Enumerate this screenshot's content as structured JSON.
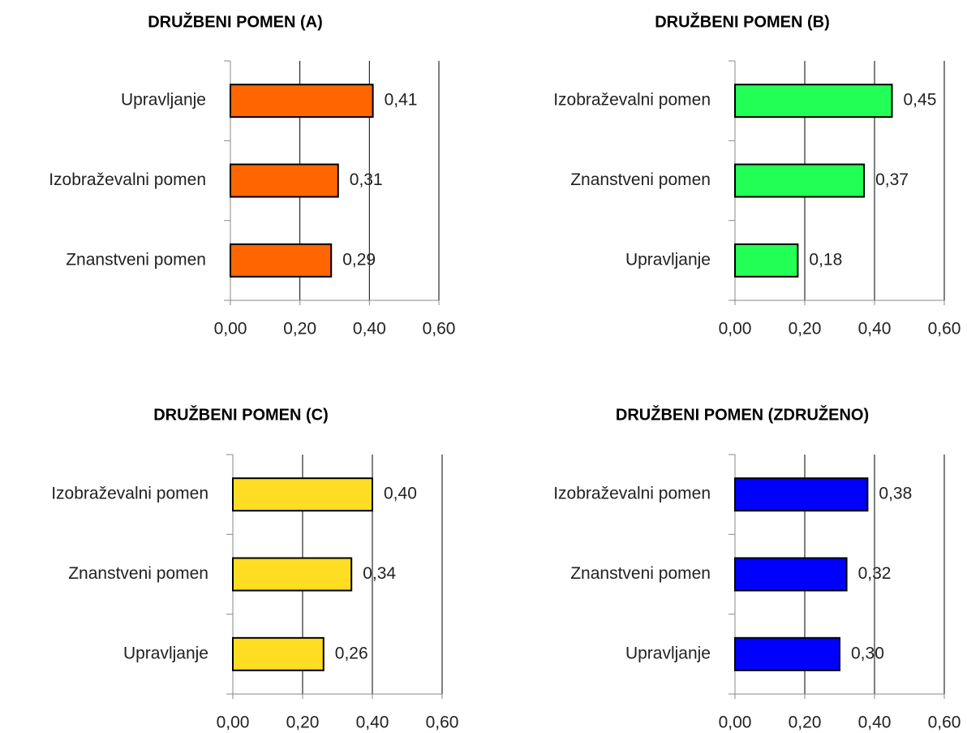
{
  "chart_data": [
    {
      "type": "hbar",
      "title": "DRUŽBENI POMEN (A)",
      "categories": [
        "Upravljanje",
        "Izobraževalni pomen",
        "Znanstveni pomen"
      ],
      "values": [
        0.41,
        0.31,
        0.29
      ],
      "value_labels": [
        "0,41",
        "0,31",
        "0,29"
      ],
      "color": "#ff6600",
      "xlim": [
        0,
        0.6
      ],
      "xticks": [
        {
          "value": 0,
          "label": "0,00"
        },
        {
          "value": 0.2,
          "label": "0,20"
        },
        {
          "value": 0.4,
          "label": "0,40"
        },
        {
          "value": 0.6,
          "label": "0,60"
        }
      ],
      "grid": true
    },
    {
      "type": "hbar",
      "title": "DRUŽBENI POMEN (B)",
      "categories": [
        "Izobraževalni pomen",
        "Znanstveni pomen",
        "Upravljanje"
      ],
      "values": [
        0.45,
        0.37,
        0.18
      ],
      "value_labels": [
        "0,45",
        "0,37",
        "0,18"
      ],
      "color": "#22ff55",
      "xlim": [
        0,
        0.6
      ],
      "xticks": [
        {
          "value": 0,
          "label": "0,00"
        },
        {
          "value": 0.2,
          "label": "0,20"
        },
        {
          "value": 0.4,
          "label": "0,40"
        },
        {
          "value": 0.6,
          "label": "0,60"
        }
      ],
      "grid": true
    },
    {
      "type": "hbar",
      "title": "DRUŽBENI POMEN (C)",
      "categories": [
        "Izobraževalni pomen",
        "Znanstveni pomen",
        "Upravljanje"
      ],
      "values": [
        0.4,
        0.34,
        0.26
      ],
      "value_labels": [
        "0,40",
        "0,34",
        "0,26"
      ],
      "color": "#ffdd22",
      "xlim": [
        0,
        0.6
      ],
      "xticks": [
        {
          "value": 0,
          "label": "0,00"
        },
        {
          "value": 0.2,
          "label": "0,20"
        },
        {
          "value": 0.4,
          "label": "0,40"
        },
        {
          "value": 0.6,
          "label": "0,60"
        }
      ],
      "grid": true
    },
    {
      "type": "hbar",
      "title": "DRUŽBENI POMEN (ZDRUŽENO)",
      "categories": [
        "Izobraževalni pomen",
        "Znanstveni pomen",
        "Upravljanje"
      ],
      "values": [
        0.38,
        0.32,
        0.3
      ],
      "value_labels": [
        "0,38",
        "0,32",
        "0,30"
      ],
      "color": "#0000ff",
      "xlim": [
        0,
        0.6
      ],
      "xticks": [
        {
          "value": 0,
          "label": "0,00"
        },
        {
          "value": 0.2,
          "label": "0,20"
        },
        {
          "value": 0.4,
          "label": "0,40"
        },
        {
          "value": 0.6,
          "label": "0,60"
        }
      ],
      "grid": true
    }
  ]
}
